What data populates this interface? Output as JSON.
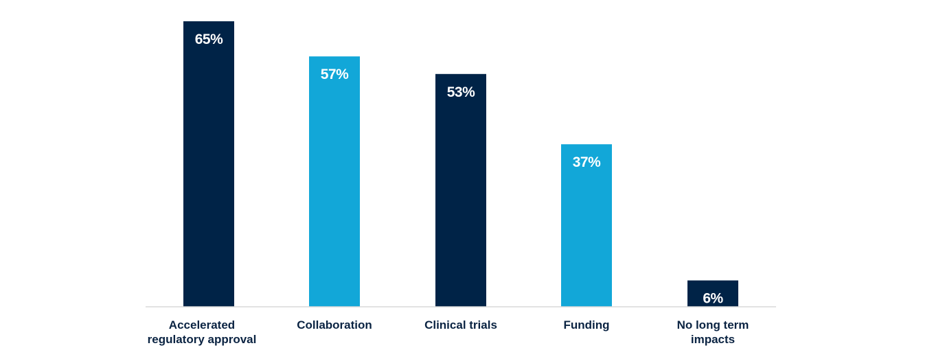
{
  "chart_data": {
    "type": "bar",
    "categories": [
      "Accelerated regulatory approval",
      "Collaboration",
      "Clinical trials",
      "Funding",
      "No long term impacts"
    ],
    "category_lines": [
      [
        "Accelerated",
        "regulatory approval"
      ],
      [
        "Collaboration"
      ],
      [
        "Clinical trials"
      ],
      [
        "Funding"
      ],
      [
        "No long term",
        "impacts"
      ]
    ],
    "values": [
      65,
      57,
      53,
      37,
      6
    ],
    "data_labels": [
      "65%",
      "57%",
      "53%",
      "37%",
      "6%"
    ],
    "unit": "%",
    "ylim": [
      0,
      65
    ],
    "grid": false,
    "legend": "none",
    "colors": [
      "#002347",
      "#12a7d8",
      "#002347",
      "#12a7d8",
      "#002347"
    ],
    "axis_color": "#d9d9d9"
  }
}
